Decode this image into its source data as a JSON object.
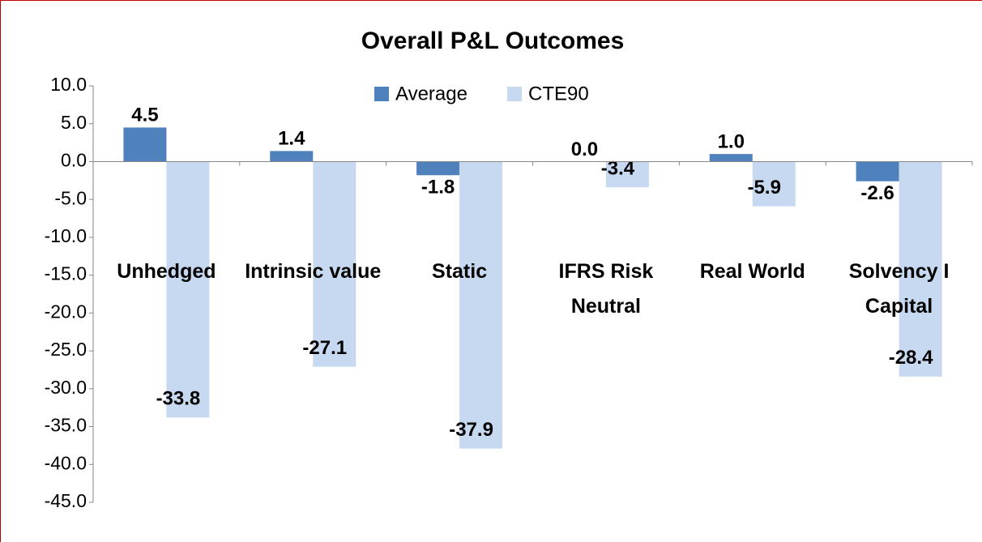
{
  "chart_data": {
    "type": "bar",
    "title": "Overall P&L Outcomes",
    "categories": [
      "Unhedged",
      "Intrinsic value",
      "Static",
      "IFRS Risk Neutral",
      "Real World",
      "Solvency I Capital"
    ],
    "series": [
      {
        "name": "Average",
        "color": "#4f81bd",
        "values": [
          4.5,
          1.4,
          -1.8,
          0.0,
          1.0,
          -2.6
        ],
        "value_labels": [
          "4.5",
          "1.4",
          "-1.8",
          "0.0",
          "1.0",
          "-2.6"
        ]
      },
      {
        "name": "CTE90",
        "color": "#c6d9f1",
        "values": [
          -33.8,
          -27.1,
          -37.9,
          -3.4,
          -5.9,
          -28.4
        ],
        "value_labels": [
          "-33.8",
          "-27.1",
          "-37.9",
          "-3.4",
          "-5.9",
          "-28.4"
        ]
      }
    ],
    "ylim": [
      -45,
      10
    ],
    "yticks": [
      {
        "value": 10,
        "label": "10.0"
      },
      {
        "value": 5,
        "label": "5.0"
      },
      {
        "value": 0,
        "label": "0.0"
      },
      {
        "value": -5,
        "label": "-5.0"
      },
      {
        "value": -10,
        "label": "-10.0"
      },
      {
        "value": -15,
        "label": "-15.0"
      },
      {
        "value": -20,
        "label": "-20.0"
      },
      {
        "value": -25,
        "label": "-25.0"
      },
      {
        "value": -30,
        "label": "-30.0"
      },
      {
        "value": -35,
        "label": "-35.0"
      },
      {
        "value": -40,
        "label": "-40.0"
      },
      {
        "value": -45,
        "label": "-45.0"
      }
    ],
    "legend": "top"
  }
}
